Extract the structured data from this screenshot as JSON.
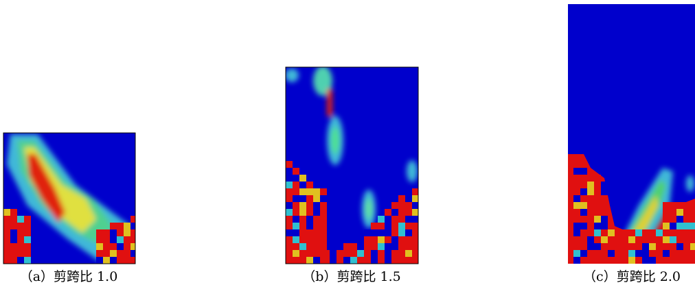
{
  "panels": [
    {
      "caption": "（a）剪跨比 1.0"
    },
    {
      "caption": "（b）剪跨比 1.5"
    },
    {
      "caption": "（c）剪跨比 2.0"
    }
  ]
}
